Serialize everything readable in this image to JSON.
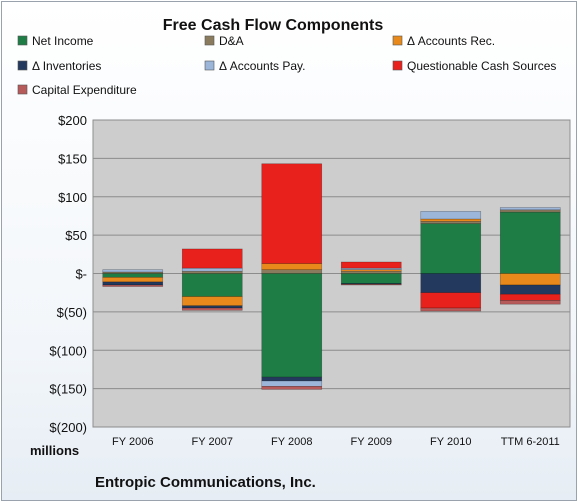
{
  "chart_data": {
    "type": "bar",
    "stacked": true,
    "title": "Free Cash Flow Components",
    "y_unit_label": "millions",
    "footer": "Entropic Communications, Inc.",
    "categories": [
      "FY 2006",
      "FY 2007",
      "FY 2008",
      "FY 2009",
      "FY 2010",
      "TTM 6-2011"
    ],
    "y_tick_labels": [
      "$200",
      "$150",
      "$100",
      "$50",
      "$-",
      "$(50)",
      "$(100)",
      "$(150)",
      "$(200)"
    ],
    "ylim": [
      -200,
      200
    ],
    "grid": true,
    "legend_position": "top",
    "series": [
      {
        "name": "Net Income",
        "color": "#1e7d45",
        "values": [
          -5,
          -30,
          -135,
          -13,
          65,
          80
        ]
      },
      {
        "name": "D&A",
        "color": "#8a7b5e",
        "values": [
          2,
          3,
          5,
          3,
          3,
          3
        ]
      },
      {
        "name": "Δ Accounts Rec.",
        "color": "#e8891c",
        "values": [
          -6,
          -12,
          8,
          2,
          3,
          -15
        ]
      },
      {
        "name": "Δ Inventories",
        "color": "#233a5e",
        "values": [
          -4,
          -3,
          -5,
          -1,
          -25,
          -12
        ]
      },
      {
        "name": "Δ Accounts Pay.",
        "color": "#9cb6d9",
        "values": [
          3,
          4,
          -7,
          2,
          10,
          3
        ]
      },
      {
        "name": "Questionable Cash Sources",
        "color": "#e8211c",
        "values": [
          0,
          25,
          130,
          8,
          -20,
          -8
        ]
      },
      {
        "name": "Capital Expenditure",
        "color": "#b75a5a",
        "values": [
          -2,
          -3,
          -4,
          -1,
          -4,
          -5
        ]
      }
    ]
  }
}
